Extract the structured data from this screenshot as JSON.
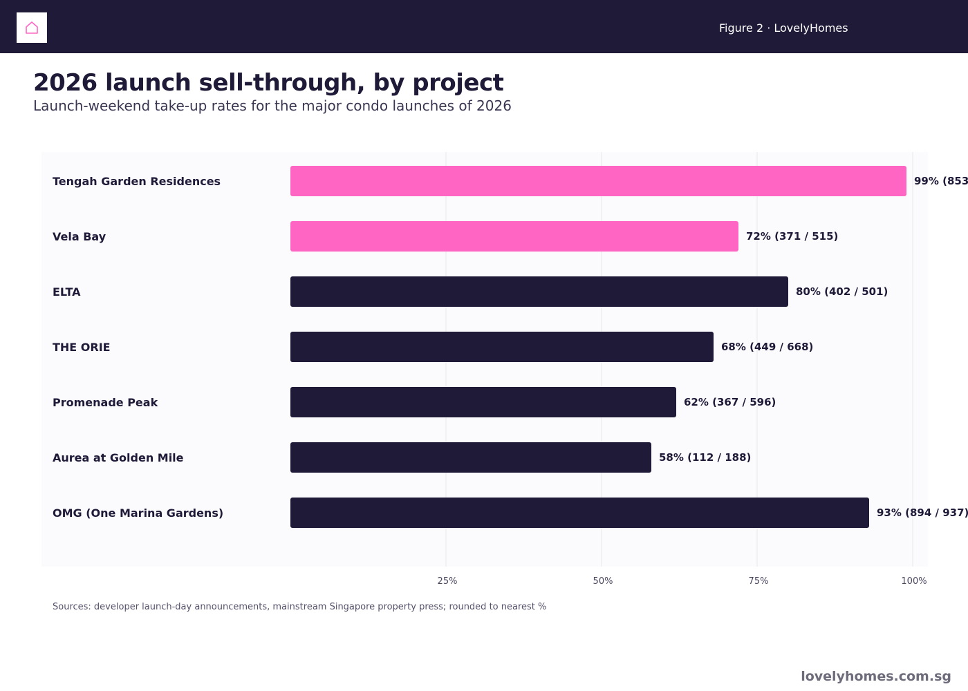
{
  "header": {
    "figure_label": "Figure 2 · LovelyHomes",
    "logo_icon": "home-icon"
  },
  "colors": {
    "brand_dark": "#1e1a38",
    "highlight": "#ff66c4",
    "panel": "#fbfbfe"
  },
  "chart_data": {
    "type": "bar",
    "orientation": "horizontal",
    "title": "2026 launch sell-through, by project",
    "subtitle": "Launch-weekend take-up rates for the major condo launches of 2026",
    "categories": [
      "Tengah Garden Residences",
      "Vela Bay",
      "ELTA",
      "THE ORIE",
      "Promenade Peak",
      "Aurea at Golden Mile",
      "OMG (One Marina Gardens)"
    ],
    "values": [
      99,
      72,
      80,
      68,
      62,
      58,
      93
    ],
    "value_labels": [
      "99% (853",
      "72% (371 / 515)",
      "80% (402 / 501)",
      "68% (449 / 668)",
      "62% (367 / 596)",
      "58% (112 / 188)",
      "93% (894 / 937)"
    ],
    "highlighted": [
      true,
      true,
      false,
      false,
      false,
      false,
      false
    ],
    "xlim": [
      0,
      100
    ],
    "ticks": [
      {
        "value": 25,
        "label": "25%"
      },
      {
        "value": 50,
        "label": "50%"
      },
      {
        "value": 75,
        "label": "75%"
      },
      {
        "value": 100,
        "label": "100%"
      }
    ],
    "grid": true
  },
  "footer": {
    "source": "Sources: developer launch-day announcements, mainstream Singapore property press; rounded to nearest %",
    "brand": "lovelyhomes.com.sg"
  }
}
